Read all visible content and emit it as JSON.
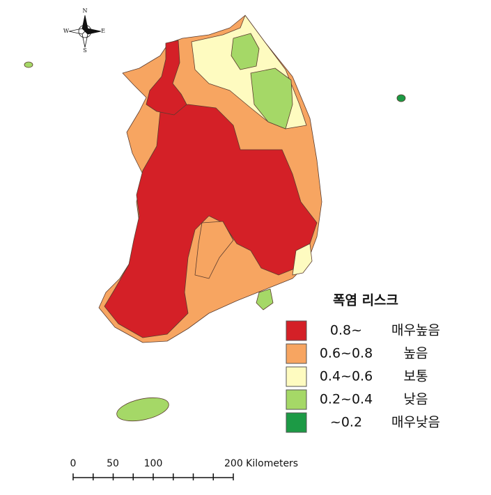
{
  "compass": {
    "north": "N",
    "south": "S",
    "east": "E",
    "west": "W"
  },
  "legend": {
    "title": "폭염 리스크",
    "items": [
      {
        "range": "0.8~",
        "label": "매우높음",
        "color": "#d42027"
      },
      {
        "range": "0.6~0.8",
        "label": "높음",
        "color": "#f7a561"
      },
      {
        "range": "0.4~0.6",
        "label": "보통",
        "color": "#fefbc0"
      },
      {
        "range": "0.2~0.4",
        "label": "낮음",
        "color": "#a5d867"
      },
      {
        "range": "~0.2",
        "label": "매우낮음",
        "color": "#1c9a45"
      }
    ]
  },
  "scale_bar": {
    "labels": [
      "0",
      "50",
      "100",
      "200 Kilometers"
    ]
  }
}
